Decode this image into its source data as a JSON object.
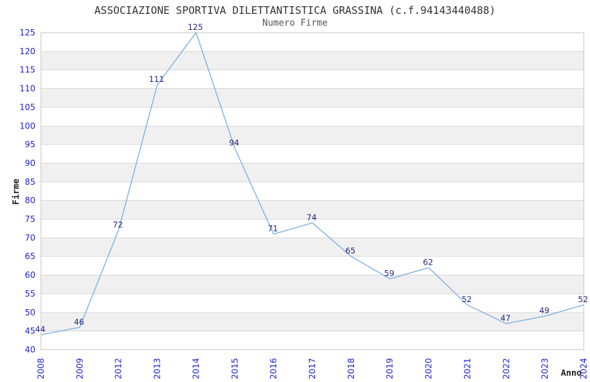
{
  "chart_data": {
    "type": "line",
    "title": "ASSOCIAZIONE SPORTIVA DILETTANTISTICA GRASSINA (c.f.94143440488)",
    "subtitle": "Numero Firme",
    "xlabel": "Anno",
    "ylabel": "Firme",
    "categories": [
      "2008",
      "2009",
      "2012",
      "2013",
      "2014",
      "2015",
      "2016",
      "2017",
      "2018",
      "2019",
      "2020",
      "2021",
      "2022",
      "2023",
      "2024"
    ],
    "values": [
      44,
      46,
      72,
      111,
      125,
      94,
      71,
      74,
      65,
      59,
      62,
      52,
      47,
      49,
      52
    ],
    "ylim": [
      40,
      125
    ],
    "ytick_step": 5,
    "grid": "horizontal",
    "band_fill": "alternating",
    "legend": "none",
    "point_labels_visible": true,
    "colors": {
      "line": "#7AADE2",
      "point_label": "#26267D",
      "tick_label": "#2222CC",
      "title": "#333333",
      "subtitle": "#555555",
      "axis_name": "#222222",
      "band_gray": "#F0F0F0",
      "gridline": "#D8D8D8",
      "plot_border": "#C6C6C6",
      "background": "#FFFFFF"
    }
  }
}
